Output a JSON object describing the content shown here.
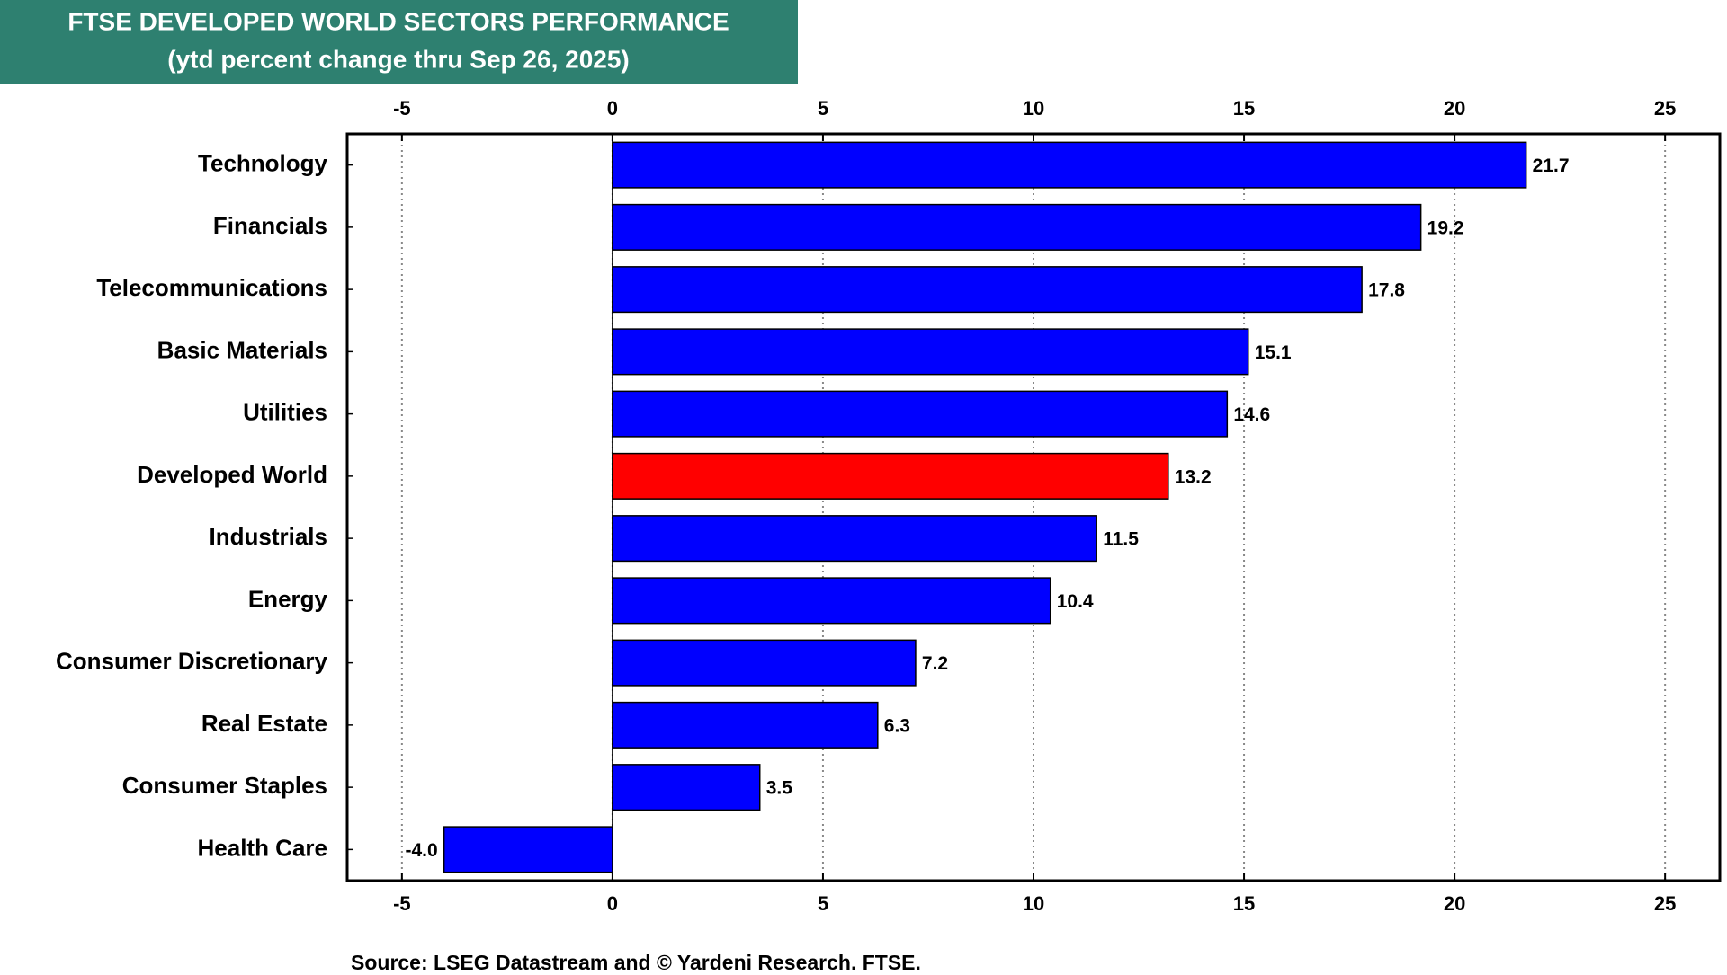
{
  "chart_data": {
    "type": "hbar",
    "title": "FTSE DEVELOPED WORLD SECTORS PERFORMANCE",
    "subtitle": "(ytd percent change thru Sep 26, 2025)",
    "source": "Source: LSEG Datastream and © Yardeni Research. FTSE.",
    "categories": [
      "Technology",
      "Financials",
      "Telecommunications",
      "Basic Materials",
      "Utilities",
      "Developed World",
      "Industrials",
      "Energy",
      "Consumer Discretionary",
      "Real Estate",
      "Consumer Staples",
      "Health Care"
    ],
    "values": [
      21.7,
      19.2,
      17.8,
      15.1,
      14.6,
      13.2,
      11.5,
      10.4,
      7.2,
      6.3,
      3.5,
      -4.0
    ],
    "value_labels": [
      "21.7",
      "19.2",
      "17.8",
      "15.1",
      "14.6",
      "13.2",
      "11.5",
      "10.4",
      "7.2",
      "6.3",
      "3.5",
      "-4.0"
    ],
    "colors": [
      "#0000ff",
      "#0000ff",
      "#0000ff",
      "#0000ff",
      "#0000ff",
      "#ff0000",
      "#0000ff",
      "#0000ff",
      "#0000ff",
      "#0000ff",
      "#0000ff",
      "#0000ff"
    ],
    "xlim": [
      -6.3,
      26.3
    ],
    "xticks": [
      -5,
      0,
      5,
      10,
      15,
      20,
      25
    ],
    "grid": true
  }
}
